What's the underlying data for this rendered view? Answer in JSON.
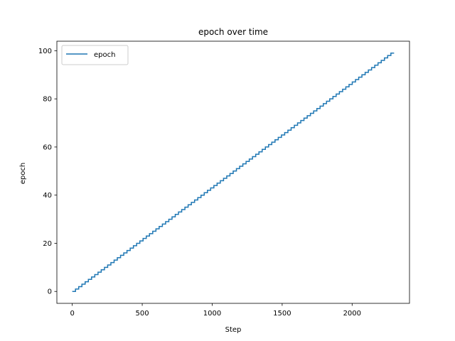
{
  "chart_data": {
    "type": "line",
    "title": "epoch over time",
    "xlabel": "Step",
    "ylabel": "epoch",
    "xlim": [
      -110,
      2410
    ],
    "ylim": [
      -4.95,
      103.95
    ],
    "xticks": [
      0,
      500,
      1000,
      1500,
      2000
    ],
    "yticks": [
      0,
      20,
      40,
      60,
      80,
      100
    ],
    "grid": false,
    "legend": {
      "position": "top-left",
      "entries": [
        "epoch"
      ]
    },
    "series": [
      {
        "name": "epoch",
        "color": "#1f77b4",
        "style": "step",
        "x_start": 0,
        "x_end": 2300,
        "y_start": 0,
        "y_end": 99,
        "step_increment": 1
      }
    ]
  }
}
